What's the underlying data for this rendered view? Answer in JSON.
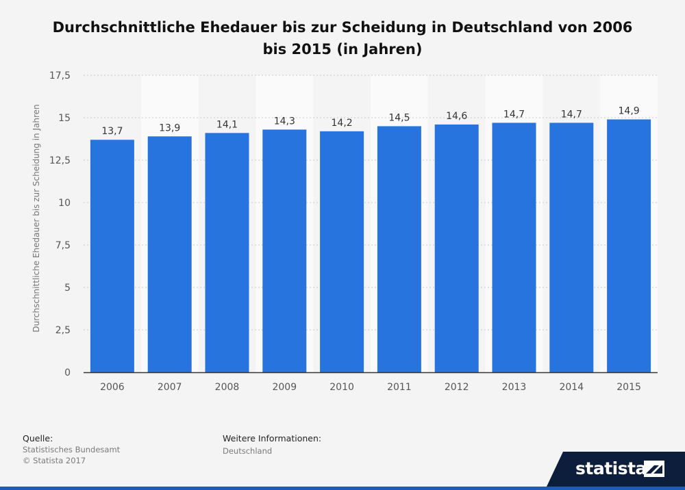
{
  "title": "Durchschnittliche Ehedauer bis zur Scheidung in Deutschland von 2006 bis 2015 (in Jahren)",
  "source_label": "Quelle:",
  "source_lines": [
    "Statistisches Bundesamt",
    "© Statista 2017"
  ],
  "more_info_label": "Weitere Informationen:",
  "more_info_value": "Deutschland",
  "brand": "statista",
  "colors": {
    "bar": "#2874de",
    "background": "#f4f4f4",
    "band": "#fafafa",
    "brand_dark": "#0d1e3d"
  },
  "chart_data": {
    "type": "bar",
    "categories": [
      "2006",
      "2007",
      "2008",
      "2009",
      "2010",
      "2011",
      "2012",
      "2013",
      "2014",
      "2015"
    ],
    "values": [
      13.7,
      13.9,
      14.1,
      14.3,
      14.2,
      14.5,
      14.6,
      14.7,
      14.7,
      14.9
    ],
    "value_labels": [
      "13,7",
      "13,9",
      "14,1",
      "14,3",
      "14,2",
      "14,5",
      "14,6",
      "14,7",
      "14,7",
      "14,9"
    ],
    "ylabel": "Durchschnittliche Ehedauer bis zur Scheidung in Jahren",
    "xlabel": "",
    "ylim": [
      0,
      17.5
    ],
    "yticks": [
      0,
      2.5,
      5,
      7.5,
      10,
      12.5,
      15,
      17.5
    ],
    "ytick_labels": [
      "0",
      "2,5",
      "5",
      "7,5",
      "10",
      "12,5",
      "15",
      "17,5"
    ],
    "grid": true,
    "legend": "none"
  }
}
